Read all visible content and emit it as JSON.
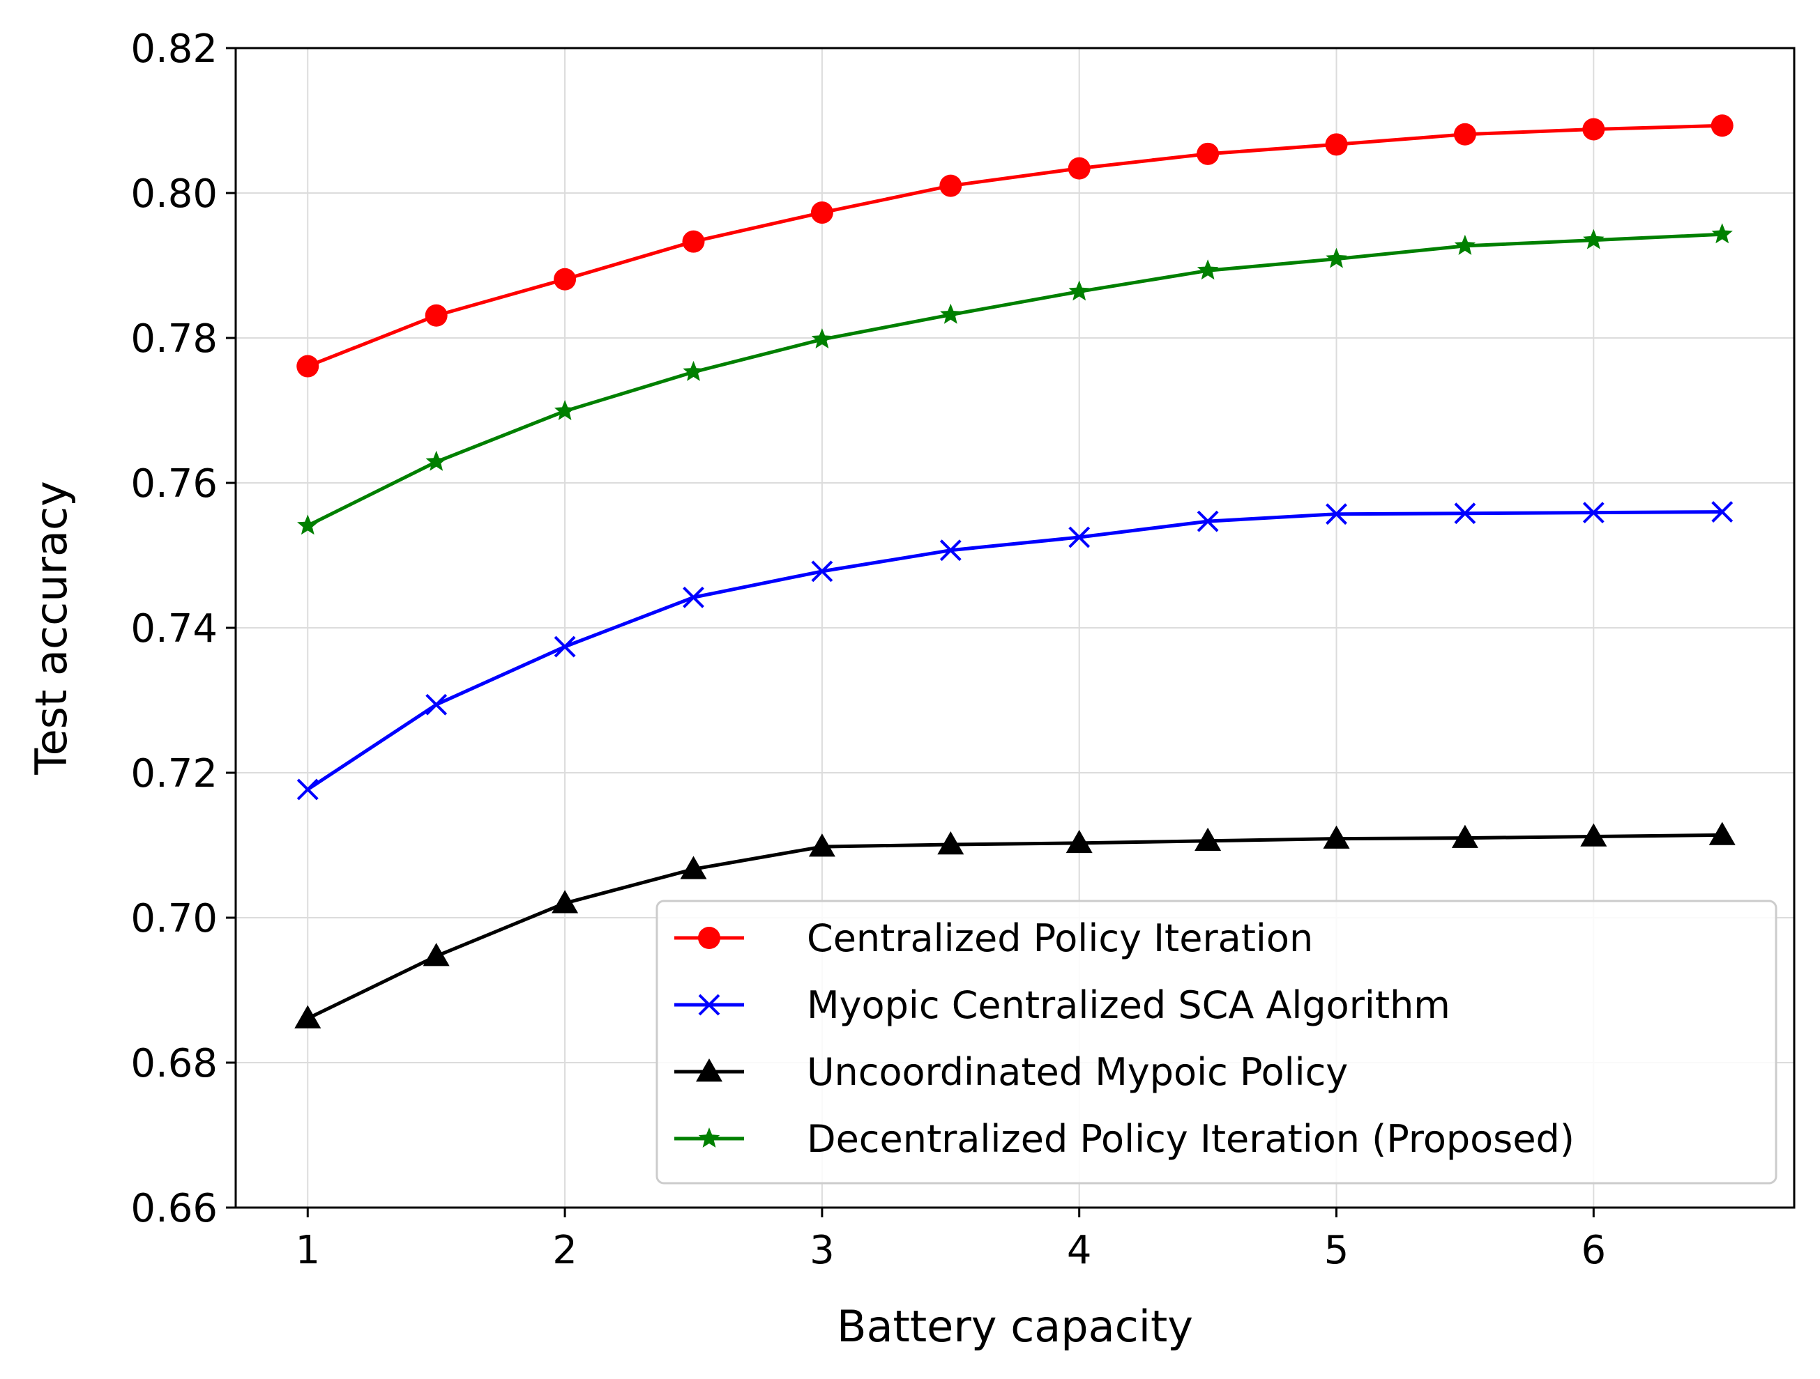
{
  "chart_data": {
    "type": "line",
    "xlabel": "Battery capacity",
    "ylabel": "Test accuracy",
    "xlim": [
      0.72,
      6.78
    ],
    "ylim": [
      0.66,
      0.82
    ],
    "xticks": [
      1,
      2,
      3,
      4,
      5,
      6
    ],
    "xtick_labels": [
      "1",
      "2",
      "3",
      "4",
      "5",
      "6"
    ],
    "yticks": [
      0.66,
      0.68,
      0.7,
      0.72,
      0.74,
      0.76,
      0.78,
      0.8,
      0.82
    ],
    "ytick_labels": [
      "0.66",
      "0.68",
      "0.70",
      "0.72",
      "0.74",
      "0.76",
      "0.78",
      "0.80",
      "0.82"
    ],
    "grid": true,
    "legend_position": "lower-right",
    "x": [
      1,
      1.5,
      2,
      2.5,
      3,
      3.5,
      4,
      4.5,
      5,
      5.5,
      6,
      6.5
    ],
    "series": [
      {
        "name": "Centralized Policy Iteration",
        "color": "#ff0000",
        "marker": "circle",
        "values": [
          0.7761,
          0.7831,
          0.7881,
          0.7933,
          0.7973,
          0.801,
          0.8034,
          0.8054,
          0.8067,
          0.8081,
          0.8088,
          0.8093
        ]
      },
      {
        "name": "Myopic Centralized SCA Algorithm",
        "color": "#0000ff",
        "marker": "x",
        "values": [
          0.7177,
          0.7294,
          0.7374,
          0.7442,
          0.7478,
          0.7507,
          0.7525,
          0.7547,
          0.7557,
          0.7558,
          0.7559,
          0.756
        ]
      },
      {
        "name": "Uncoordinated Mypoic Policy",
        "color": "#000000",
        "marker": "triangle",
        "values": [
          0.6861,
          0.6947,
          0.702,
          0.7067,
          0.7098,
          0.7101,
          0.7103,
          0.7106,
          0.7109,
          0.711,
          0.7112,
          0.7114
        ]
      },
      {
        "name": "Decentralized Policy Iteration (Proposed)",
        "color": "#008000",
        "marker": "star",
        "values": [
          0.7541,
          0.7629,
          0.7699,
          0.7753,
          0.7798,
          0.7832,
          0.7864,
          0.7893,
          0.7909,
          0.7927,
          0.7935,
          0.7943
        ]
      }
    ]
  }
}
